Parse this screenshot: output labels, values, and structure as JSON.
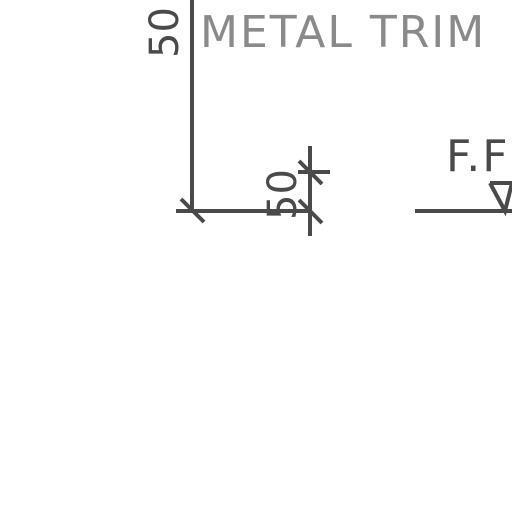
{
  "drawing": {
    "trim_label": "METAL TRIM",
    "level_label": "F.F",
    "dim_vertical_top": "50",
    "dim_vertical_small": "50"
  }
}
